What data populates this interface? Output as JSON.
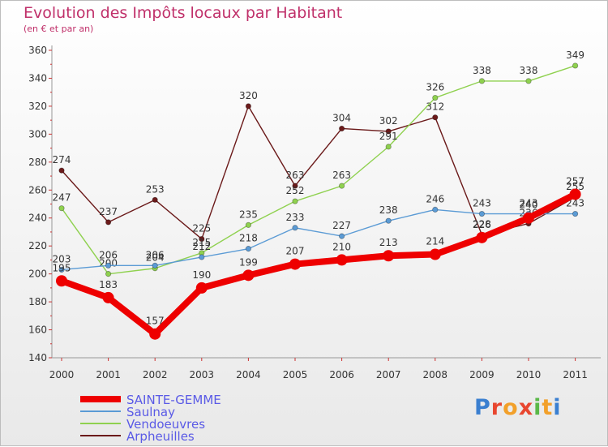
{
  "chart_data": {
    "type": "line",
    "title": "Evolution des Impôts locaux par Habitant",
    "subtitle": "(en € et par an)",
    "xlabel": "",
    "ylabel": "",
    "categories": [
      "2000",
      "2001",
      "2002",
      "2003",
      "2004",
      "2005",
      "2006",
      "2007",
      "2008",
      "2009",
      "2010",
      "2011"
    ],
    "ylim": [
      140,
      360
    ],
    "yticks": [
      140,
      160,
      180,
      200,
      220,
      240,
      260,
      280,
      300,
      320,
      340,
      360
    ],
    "grid": false,
    "legend": "bottom-left",
    "series": [
      {
        "name": "SAINTE-GEMME",
        "color": "#ee0000",
        "values": [
          195,
          183,
          157,
          190,
          199,
          207,
          210,
          213,
          214,
          226,
          240,
          257
        ]
      },
      {
        "name": "Saulnay",
        "color": "#5b9bd5",
        "values": [
          203,
          206,
          206,
          212,
          218,
          233,
          227,
          238,
          246,
          243,
          243,
          243
        ]
      },
      {
        "name": "Vendoeuvres",
        "color": "#8fd14f",
        "values": [
          247,
          200,
          204,
          215,
          235,
          252,
          263,
          291,
          326,
          338,
          338,
          349
        ]
      },
      {
        "name": "Arpheuilles",
        "color": "#6b1a1a",
        "values": [
          274,
          237,
          253,
          225,
          320,
          263,
          304,
          302,
          312,
          228,
          236,
          255
        ]
      }
    ]
  },
  "legend_title_color": "#5a5ae6",
  "logo": {
    "letters": [
      "P",
      "r",
      "o",
      "x",
      "i",
      "t",
      "i"
    ],
    "colors": [
      "#3a7fd0",
      "#e8462f",
      "#f2a02a",
      "#e8462f",
      "#5ab848",
      "#f2a02a",
      "#3a7fd0"
    ]
  }
}
